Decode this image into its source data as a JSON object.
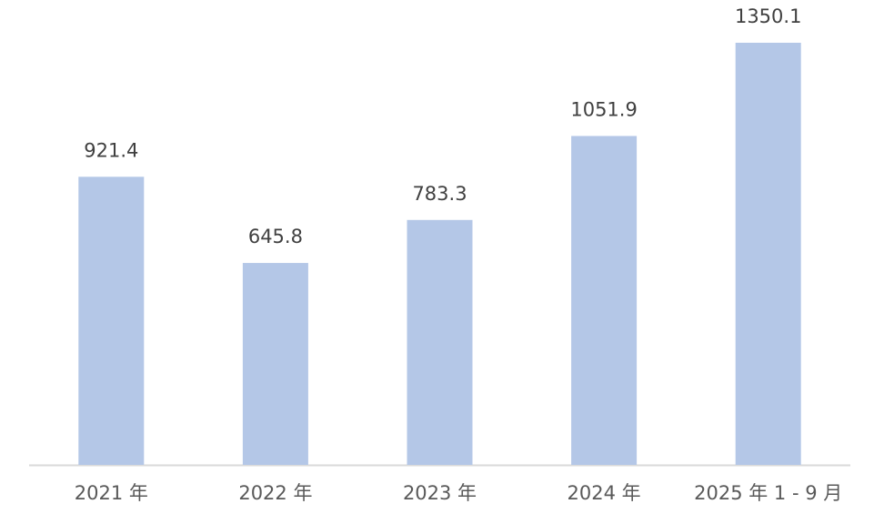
{
  "chart_data": {
    "type": "bar",
    "categories": [
      "2021 年",
      "2022 年",
      "2023 年",
      "2024 年",
      "2025 年 1 - 9 月"
    ],
    "values": [
      921.4,
      645.8,
      783.3,
      1051.9,
      1350.1
    ],
    "data_labels": [
      "921.4",
      "645.8",
      "783.3",
      "1051.9",
      "1350.1"
    ],
    "title": "",
    "xlabel": "",
    "ylabel": "",
    "ylim": [
      0,
      1350.1
    ],
    "grid": false,
    "legend": "none",
    "colors": {
      "bar": "#B4C7E7",
      "axis": "#D9D9D9",
      "label": "#404040"
    }
  }
}
